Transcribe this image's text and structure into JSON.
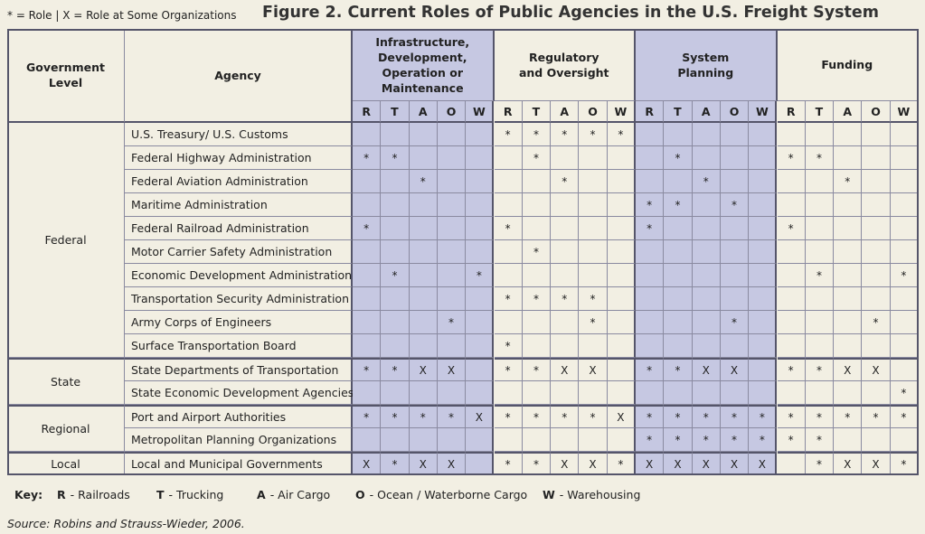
{
  "legend_note": "* = Role | X = Role at Some Organizations",
  "title": "Figure 2. Current Roles of Public Agencies in the U.S. Freight System",
  "table": {
    "header": {
      "level": "Government Level",
      "agency": "Agency",
      "groups": [
        "Infrastructure, Development, Operation or Maintenance",
        "Regulatory and Oversight",
        "System Planning",
        "Funding"
      ],
      "subcolumns": [
        "R",
        "T",
        "A",
        "O",
        "W"
      ]
    },
    "levels": [
      {
        "name": "Federal",
        "rows": [
          {
            "agency": "U.S. Treasury/ U.S. Customs",
            "cells": [
              null,
              null,
              null,
              null,
              null,
              "*",
              "*",
              "*",
              "*",
              "*",
              null,
              null,
              null,
              null,
              null,
              null,
              null,
              null,
              null,
              null
            ]
          },
          {
            "agency": "Federal Highway Administration",
            "cells": [
              "*",
              "*",
              null,
              null,
              null,
              null,
              "*",
              null,
              null,
              null,
              null,
              "*",
              null,
              null,
              null,
              "*",
              "*",
              null,
              null,
              null
            ]
          },
          {
            "agency": "Federal Aviation Administration",
            "cells": [
              null,
              null,
              "*",
              null,
              null,
              null,
              null,
              "*",
              null,
              null,
              null,
              null,
              "*",
              null,
              null,
              null,
              null,
              "*",
              null,
              null
            ]
          },
          {
            "agency": "Maritime Administration",
            "cells": [
              null,
              null,
              null,
              null,
              null,
              null,
              null,
              null,
              null,
              null,
              "*",
              "*",
              null,
              "*",
              null,
              null,
              null,
              null,
              null,
              null
            ]
          },
          {
            "agency": "Federal Railroad Administration",
            "cells": [
              "*",
              null,
              null,
              null,
              null,
              "*",
              null,
              null,
              null,
              null,
              "*",
              null,
              null,
              null,
              null,
              "*",
              null,
              null,
              null,
              null
            ]
          },
          {
            "agency": "Motor Carrier Safety Administration",
            "cells": [
              null,
              null,
              null,
              null,
              null,
              null,
              "*",
              null,
              null,
              null,
              null,
              null,
              null,
              null,
              null,
              null,
              null,
              null,
              null,
              null
            ]
          },
          {
            "agency": "Economic Development Administration",
            "cells": [
              null,
              "*",
              null,
              null,
              "*",
              null,
              null,
              null,
              null,
              null,
              null,
              null,
              null,
              null,
              null,
              null,
              "*",
              null,
              null,
              "*"
            ]
          },
          {
            "agency": "Transportation Security Administration",
            "cells": [
              null,
              null,
              null,
              null,
              null,
              "*",
              "*",
              "*",
              "*",
              null,
              null,
              null,
              null,
              null,
              null,
              null,
              null,
              null,
              null,
              null
            ]
          },
          {
            "agency": "Army Corps of Engineers",
            "cells": [
              null,
              null,
              null,
              "*",
              null,
              null,
              null,
              null,
              "*",
              null,
              null,
              null,
              null,
              "*",
              null,
              null,
              null,
              null,
              "*",
              null
            ]
          },
          {
            "agency": "Surface Transportation Board",
            "cells": [
              null,
              null,
              null,
              null,
              null,
              "*",
              null,
              null,
              null,
              null,
              null,
              null,
              null,
              null,
              null,
              null,
              null,
              null,
              null,
              null
            ]
          }
        ]
      },
      {
        "name": "State",
        "rows": [
          {
            "agency": "State Departments of Transportation",
            "cells": [
              "*",
              "*",
              "X",
              "X",
              null,
              "*",
              "*",
              "X",
              "X",
              null,
              "*",
              "*",
              "X",
              "X",
              null,
              "*",
              "*",
              "X",
              "X",
              null
            ]
          },
          {
            "agency": "State Economic Development Agencies",
            "cells": [
              null,
              null,
              null,
              null,
              null,
              null,
              null,
              null,
              null,
              null,
              null,
              null,
              null,
              null,
              null,
              null,
              null,
              null,
              null,
              "*"
            ]
          }
        ]
      },
      {
        "name": "Regional",
        "rows": [
          {
            "agency": "Port and Airport Authorities",
            "cells": [
              "*",
              "*",
              "*",
              "*",
              "X",
              "*",
              "*",
              "*",
              "*",
              "X",
              "*",
              "*",
              "*",
              "*",
              "*",
              "*",
              "*",
              "*",
              "*",
              "*"
            ]
          },
          {
            "agency": "Metropolitan Planning Organizations",
            "cells": [
              null,
              null,
              null,
              null,
              null,
              null,
              null,
              null,
              null,
              null,
              "*",
              "*",
              "*",
              "*",
              "*",
              "*",
              "*",
              null,
              null,
              null
            ]
          }
        ]
      },
      {
        "name": "Local",
        "rows": [
          {
            "agency": "Local and Municipal Governments",
            "cells": [
              "X",
              "*",
              "X",
              "X",
              null,
              "*",
              "*",
              "X",
              "X",
              "*",
              "X",
              "X",
              "X",
              "X",
              "X",
              null,
              "*",
              "X",
              "X",
              "*"
            ]
          }
        ]
      }
    ]
  },
  "key": {
    "label": "Key:",
    "items": [
      {
        "code": "R",
        "text": "- Railroads"
      },
      {
        "code": "T",
        "text": "- Trucking"
      },
      {
        "code": "A",
        "text": "- Air Cargo"
      },
      {
        "code": "O",
        "text": "- Ocean / Waterborne Cargo"
      },
      {
        "code": "W",
        "text": "- Warehousing"
      }
    ]
  },
  "source": "Source: Robins and Strauss-Wieder, 2006."
}
